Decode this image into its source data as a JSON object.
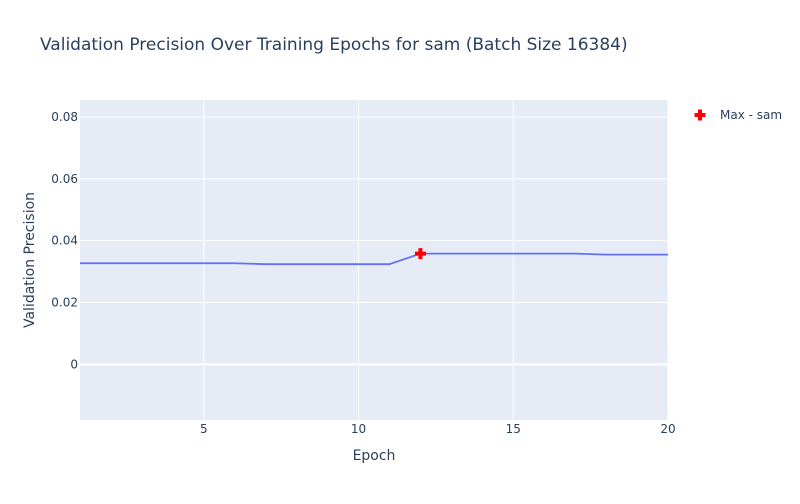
{
  "chart_data": {
    "type": "line",
    "title": "Validation Precision Over Training Epochs for sam (Batch Size 16384)",
    "xlabel": "Epoch",
    "ylabel": "Validation Precision",
    "xlim": [
      1,
      20
    ],
    "ylim": [
      -0.018,
      0.0855
    ],
    "x_ticks": [
      5,
      10,
      15,
      20
    ],
    "x_tick_labels": [
      "5",
      "10",
      "15",
      "20"
    ],
    "y_ticks": [
      0,
      0.02,
      0.04,
      0.06,
      0.08
    ],
    "y_tick_labels": [
      "0",
      "0.02",
      "0.04",
      "0.06",
      "0.08"
    ],
    "grid": true,
    "legend_position": "top-right",
    "series": [
      {
        "name": "",
        "color": "#636efa",
        "x": [
          1,
          2,
          3,
          4,
          5,
          6,
          7,
          8,
          9,
          10,
          11,
          12,
          13,
          14,
          15,
          16,
          17,
          18,
          19,
          20
        ],
        "y": [
          0.0327,
          0.0327,
          0.0327,
          0.0327,
          0.0327,
          0.0327,
          0.0324,
          0.0324,
          0.0324,
          0.0324,
          0.0324,
          0.0358,
          0.0358,
          0.0358,
          0.0358,
          0.0358,
          0.0358,
          0.0355,
          0.0355,
          0.0355
        ]
      }
    ],
    "markers": [
      {
        "name": "Max - sam",
        "x": 12,
        "y": 0.0358,
        "color": "#ff0000",
        "symbol": "cross"
      }
    ],
    "colors": {
      "plot_background": "#e5ecf6",
      "grid": "#ffffff",
      "text": "#2a3f5f"
    }
  }
}
